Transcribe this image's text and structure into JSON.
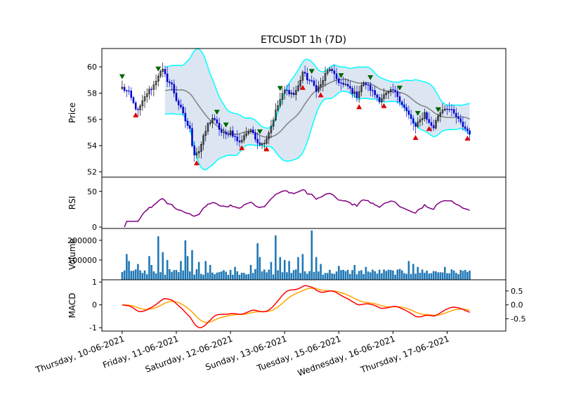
{
  "chart_data": {
    "type": "candlestick",
    "title": "ETCUSDT 1h (7D)",
    "x_tick_labels": [
      "Thursday, 10-06-2021",
      "Friday, 11-06-2021",
      "Saturday, 12-06-2021",
      "Sunday, 13-06-2021",
      "Tuesday, 15-06-2021",
      "Wednesday, 16-06-2021",
      "Thursday, 17-06-2021"
    ],
    "x_tick_positions": [
      0,
      24,
      48,
      72,
      96,
      120,
      144
    ],
    "x_range": [
      -9,
      170
    ],
    "panels": {
      "price": {
        "ylabel": "Price",
        "ylim": [
          51.6,
          61.4
        ],
        "yticks": [
          52,
          54,
          56,
          58,
          60
        ],
        "close_anchors": [
          [
            0,
            58.4
          ],
          [
            3,
            58.0
          ],
          [
            5,
            57.2
          ],
          [
            7,
            56.6
          ],
          [
            9,
            57.3
          ],
          [
            11,
            58.0
          ],
          [
            14,
            58.6
          ],
          [
            16,
            59.4
          ],
          [
            18,
            59.7
          ],
          [
            20,
            59.0
          ],
          [
            22,
            58.6
          ],
          [
            24,
            57.5
          ],
          [
            26,
            56.8
          ],
          [
            28,
            55.9
          ],
          [
            30,
            55.2
          ],
          [
            31,
            54.1
          ],
          [
            32,
            53.4
          ],
          [
            34,
            53.6
          ],
          [
            36,
            54.6
          ],
          [
            38,
            55.6
          ],
          [
            40,
            56.1
          ],
          [
            42,
            55.6
          ],
          [
            44,
            55.0
          ],
          [
            46,
            54.8
          ],
          [
            48,
            55.1
          ],
          [
            50,
            54.6
          ],
          [
            52,
            54.2
          ],
          [
            54,
            54.8
          ],
          [
            56,
            55.1
          ],
          [
            58,
            55.0
          ],
          [
            60,
            54.3
          ],
          [
            62,
            54.1
          ],
          [
            64,
            54.6
          ],
          [
            66,
            55.5
          ],
          [
            68,
            56.6
          ],
          [
            70,
            57.5
          ],
          [
            72,
            58.2
          ],
          [
            74,
            58.1
          ],
          [
            76,
            57.9
          ],
          [
            78,
            58.5
          ],
          [
            80,
            59.6
          ],
          [
            82,
            59.1
          ],
          [
            84,
            58.8
          ],
          [
            86,
            58.3
          ],
          [
            88,
            58.6
          ],
          [
            90,
            59.4
          ],
          [
            92,
            59.9
          ],
          [
            94,
            59.3
          ],
          [
            96,
            58.9
          ],
          [
            98,
            58.6
          ],
          [
            100,
            58.5
          ],
          [
            102,
            58.1
          ],
          [
            104,
            57.8
          ],
          [
            106,
            58.6
          ],
          [
            108,
            58.7
          ],
          [
            110,
            58.3
          ],
          [
            112,
            57.9
          ],
          [
            114,
            57.5
          ],
          [
            116,
            57.8
          ],
          [
            118,
            58.0
          ],
          [
            120,
            58.2
          ],
          [
            122,
            57.8
          ],
          [
            124,
            57.2
          ],
          [
            126,
            56.6
          ],
          [
            128,
            56.0
          ],
          [
            130,
            55.4
          ],
          [
            132,
            55.9
          ],
          [
            134,
            56.5
          ],
          [
            136,
            55.7
          ],
          [
            138,
            55.4
          ],
          [
            140,
            56.3
          ],
          [
            142,
            56.8
          ],
          [
            144,
            56.9
          ],
          [
            146,
            56.6
          ],
          [
            148,
            56.2
          ],
          [
            150,
            55.7
          ],
          [
            152,
            55.3
          ],
          [
            154,
            55.0
          ]
        ],
        "buy_markers_x": [
          0,
          16,
          42,
          46,
          61,
          70,
          84,
          97,
          110,
          123,
          131,
          140
        ],
        "sell_markers_x": [
          6,
          33,
          53,
          64,
          80,
          88,
          105,
          116,
          130,
          136,
          153
        ],
        "bollinger_period": 20,
        "bollinger_std": 2
      },
      "rsi": {
        "ylabel": "RSI",
        "ylim": [
          -2,
          70
        ],
        "yticks": [
          0,
          50
        ]
      },
      "volume": {
        "ylabel": "Volume",
        "ylim": [
          0,
          260000
        ],
        "yticks": [
          100000,
          200000
        ],
        "yticklabels": [
          "100000",
          "200000"
        ],
        "base_volume": 25000,
        "spikes": [
          [
            2,
            130000
          ],
          [
            3,
            95000
          ],
          [
            7,
            80000
          ],
          [
            12,
            120000
          ],
          [
            13,
            75000
          ],
          [
            16,
            220000
          ],
          [
            18,
            140000
          ],
          [
            20,
            100000
          ],
          [
            26,
            95000
          ],
          [
            28,
            200000
          ],
          [
            29,
            120000
          ],
          [
            31,
            150000
          ],
          [
            34,
            90000
          ],
          [
            37,
            95000
          ],
          [
            39,
            75000
          ],
          [
            50,
            65000
          ],
          [
            57,
            75000
          ],
          [
            60,
            185000
          ],
          [
            61,
            115000
          ],
          [
            66,
            90000
          ],
          [
            68,
            225000
          ],
          [
            70,
            115000
          ],
          [
            72,
            100000
          ],
          [
            74,
            95000
          ],
          [
            78,
            115000
          ],
          [
            80,
            130000
          ],
          [
            84,
            250000
          ],
          [
            86,
            115000
          ],
          [
            88,
            80000
          ],
          [
            96,
            70000
          ],
          [
            103,
            75000
          ],
          [
            108,
            65000
          ],
          [
            119,
            50000
          ],
          [
            127,
            95000
          ],
          [
            129,
            80000
          ],
          [
            131,
            65000
          ],
          [
            143,
            65000
          ],
          [
            150,
            50000
          ]
        ]
      },
      "macd": {
        "ylabel": "MACD",
        "ylim": [
          -1.15,
          1.1
        ],
        "yticks_left": [
          -1,
          0,
          1
        ],
        "yticks_right": [
          -0.5,
          0.0,
          0.5
        ],
        "right_scale_factor": 0.82
      }
    },
    "colors": {
      "bollinger_band": "#00ffff",
      "bollinger_fill": "#dce6f2",
      "bollinger_mid": "#808080",
      "candle_up": "#000000",
      "candle_down": "#0000cc",
      "buy_marker": "#006400",
      "sell_marker": "#dd0000",
      "rsi_line": "#800080",
      "volume_bar": "#1f77b4",
      "macd_line": "#ff0000",
      "signal_line": "#ffa500"
    }
  }
}
